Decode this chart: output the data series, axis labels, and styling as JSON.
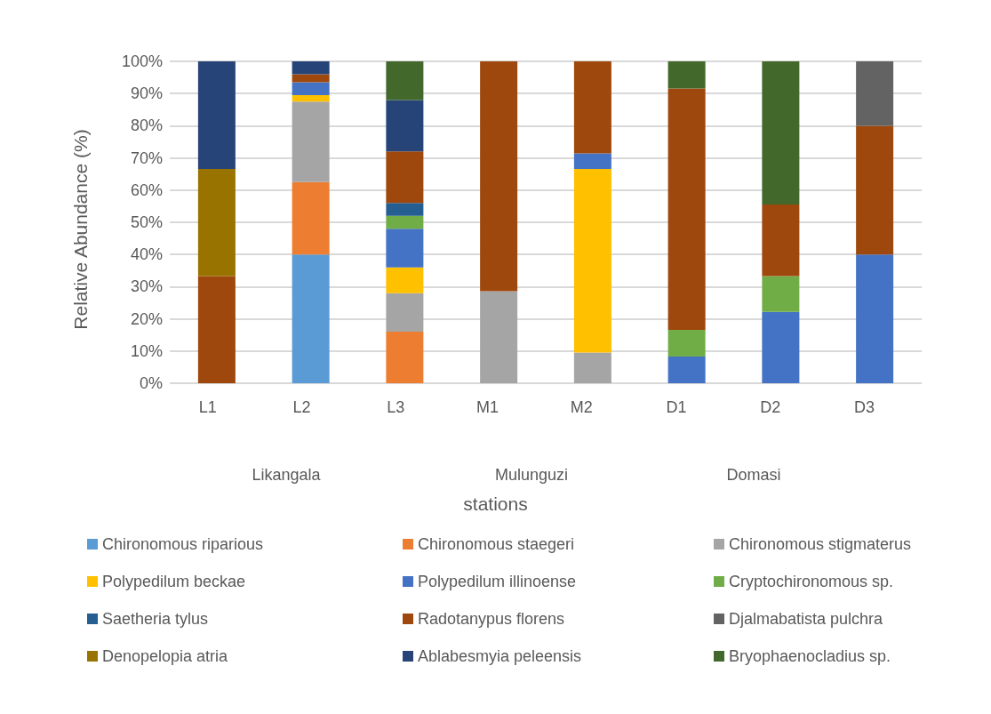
{
  "chart_data": {
    "type": "bar",
    "stacked": true,
    "xlabel": "stations",
    "ylabel": "Relative Abundance (%)",
    "categories": [
      "L1",
      "L2",
      "L3",
      "M1",
      "M2",
      "D1",
      "D2",
      "D3"
    ],
    "annotations": [
      "Likangala",
      "Mulunguzi",
      "Domasi"
    ],
    "ylim": [
      0,
      100
    ],
    "yticks": [
      {
        "value": 0,
        "label": "0%"
      },
      {
        "value": 10,
        "label": "10%"
      },
      {
        "value": 20,
        "label": "20%"
      },
      {
        "value": 30,
        "label": "30%"
      },
      {
        "value": 40,
        "label": "40%"
      },
      {
        "value": 50,
        "label": "50%"
      },
      {
        "value": 60,
        "label": "60%"
      },
      {
        "value": 70,
        "label": "70%"
      },
      {
        "value": 80,
        "label": "80%"
      },
      {
        "value": 90,
        "label": "90%"
      },
      {
        "value": 100,
        "label": "100%"
      }
    ],
    "grid": "y",
    "legend": "bottom",
    "series": [
      {
        "name": "Chironomous riparious",
        "color": "#5b9bd5",
        "values": [
          null,
          40,
          null,
          null,
          null,
          null,
          null,
          null
        ]
      },
      {
        "name": "Chironomous staegeri",
        "color": "#ed7d31",
        "values": [
          null,
          22.5,
          16,
          null,
          null,
          null,
          null,
          null
        ]
      },
      {
        "name": "Chironomous stigmaterus",
        "color": "#a5a5a5",
        "values": [
          null,
          25,
          12,
          28.6,
          9.5,
          null,
          null,
          null
        ]
      },
      {
        "name": "Polypedilum beckae",
        "color": "#ffc000",
        "values": [
          null,
          2,
          8,
          null,
          57.1,
          null,
          null,
          null
        ]
      },
      {
        "name": "Polypedilum illinoense",
        "color": "#4472c4",
        "values": [
          null,
          4,
          12,
          null,
          4.8,
          8.3,
          22.2,
          40
        ]
      },
      {
        "name": "Cryptochironomous sp.",
        "color": "#70ad47",
        "values": [
          null,
          null,
          4,
          null,
          null,
          8.3,
          11.1,
          null
        ]
      },
      {
        "name": "Saetheria tylus",
        "color": "#255e91",
        "values": [
          null,
          null,
          4,
          null,
          null,
          null,
          null,
          null
        ]
      },
      {
        "name": "Radotanypus florens",
        "color": "#9e480e",
        "values": [
          33.3,
          2.5,
          16,
          71.4,
          28.6,
          75,
          22.2,
          40
        ]
      },
      {
        "name": "Djalmabatista pulchra",
        "color": "#636363",
        "values": [
          null,
          null,
          null,
          null,
          null,
          null,
          null,
          20
        ]
      },
      {
        "name": "Denopelopia atria",
        "color": "#997300",
        "values": [
          33.3,
          null,
          null,
          null,
          null,
          null,
          null,
          null
        ]
      },
      {
        "name": "Ablabesmyia peleensis",
        "color": "#264478",
        "values": [
          33.4,
          4,
          16,
          null,
          null,
          null,
          null,
          null
        ]
      },
      {
        "name": "Bryophaenocladius sp.",
        "color": "#43682b",
        "values": [
          null,
          null,
          12,
          null,
          null,
          8.4,
          44.5,
          null
        ]
      }
    ]
  }
}
